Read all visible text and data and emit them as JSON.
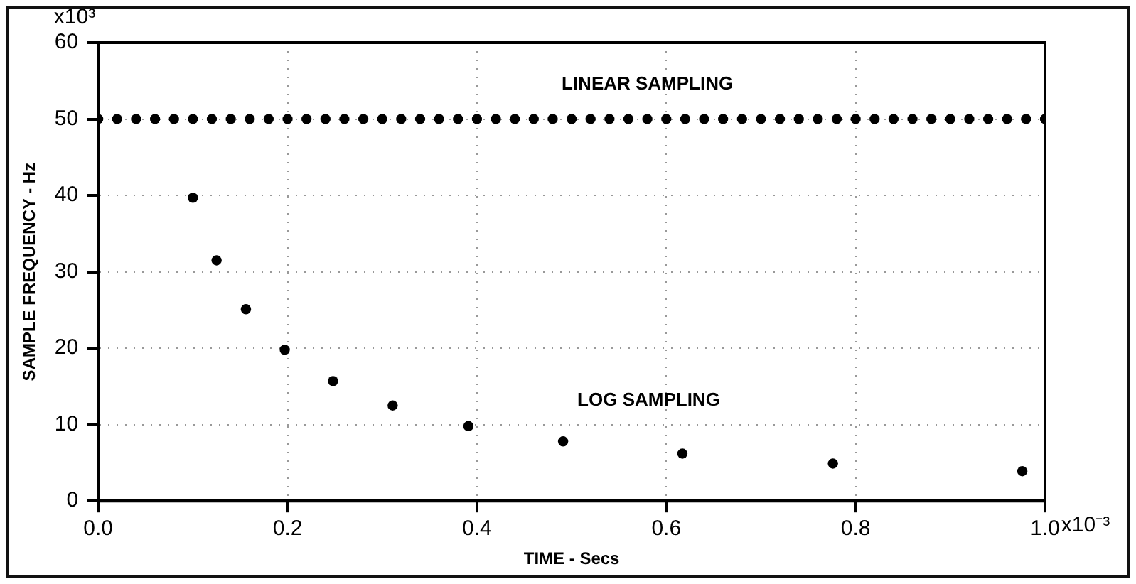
{
  "chart_data": {
    "type": "scatter",
    "xlabel": "TIME - Secs",
    "ylabel": "SAMPLE FREQUENCY - Hz",
    "xlim": [
      0,
      1
    ],
    "ylim": [
      0,
      60
    ],
    "xticks": [
      {
        "value": 0,
        "label": "0.0"
      },
      0.2,
      0.4,
      0.6,
      0.8,
      {
        "value": 1,
        "label": "1.0"
      }
    ],
    "yticks": [
      0,
      10,
      20,
      30,
      40,
      50,
      60
    ],
    "annotations": [
      "x10⁻³",
      "x10³"
    ],
    "grid": true,
    "marker": "circle",
    "series": [
      {
        "name": "LINEAR SAMPLING",
        "color": "#000000",
        "x": [
          0,
          0.02,
          0.04,
          0.06,
          0.08,
          0.1,
          0.12,
          0.14,
          0.16,
          0.18,
          0.2,
          0.22,
          0.24,
          0.26,
          0.28,
          0.3,
          0.32,
          0.34,
          0.36,
          0.38,
          0.4,
          0.42,
          0.44,
          0.46,
          0.48,
          0.5,
          0.52,
          0.54,
          0.56,
          0.58,
          0.6,
          0.62,
          0.64,
          0.66,
          0.68,
          0.7,
          0.72,
          0.74,
          0.76,
          0.78,
          0.8,
          0.82,
          0.84,
          0.86,
          0.88,
          0.9,
          0.92,
          0.94,
          0.96,
          0.98,
          1
        ],
        "values": [
          50,
          50,
          50,
          50,
          50,
          50,
          50,
          50,
          50,
          50,
          50,
          50,
          50,
          50,
          50,
          50,
          50,
          50,
          50,
          50,
          50,
          50,
          50,
          50,
          50,
          50,
          50,
          50,
          50,
          50,
          50,
          50,
          50,
          50,
          50,
          50,
          50,
          50,
          50,
          50,
          50,
          50,
          50,
          50,
          50,
          50,
          50,
          50,
          50,
          50,
          50
        ]
      },
      {
        "name": "LOG SAMPLING",
        "color": "#000000",
        "x": [
          0.1,
          0.125,
          0.156,
          0.197,
          0.248,
          0.311,
          0.391,
          0.491,
          0.617,
          0.776,
          0.976
        ],
        "values": [
          39.7,
          31.5,
          25.1,
          19.8,
          15.7,
          12.5,
          9.8,
          7.8,
          6.2,
          4.9,
          3.9
        ]
      }
    ]
  }
}
